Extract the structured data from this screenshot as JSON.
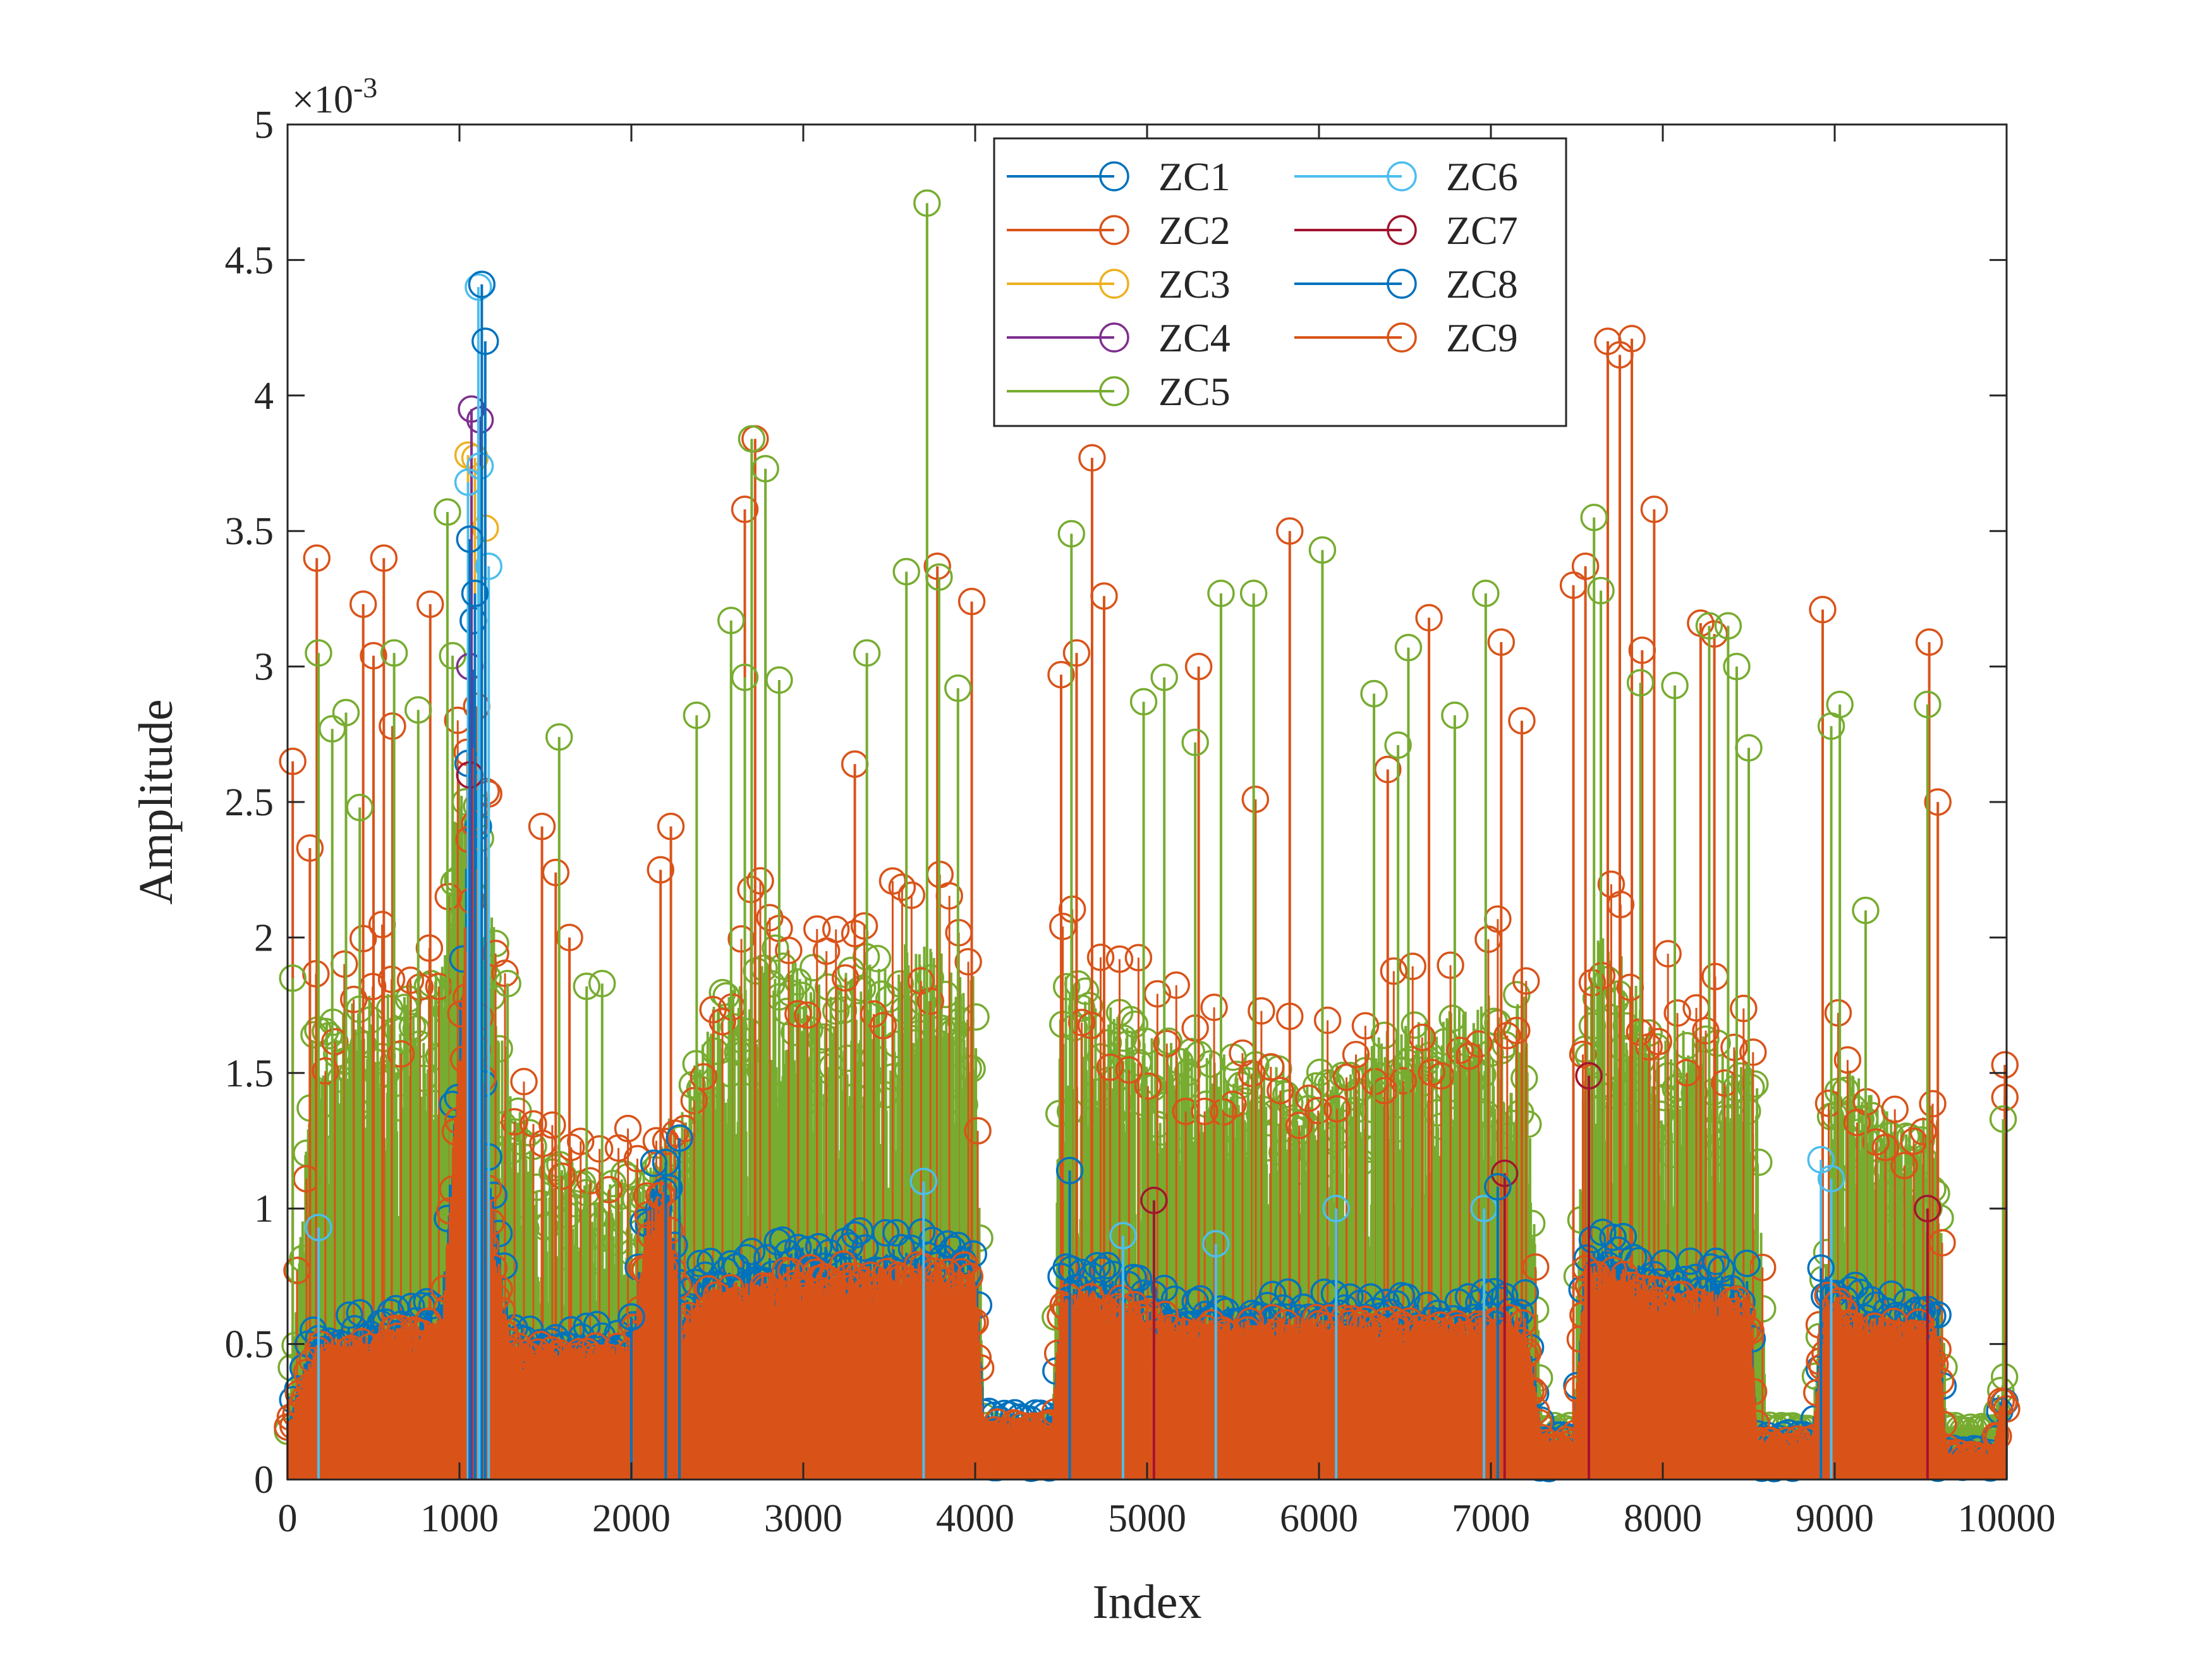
{
  "chart_data": {
    "type": "stem",
    "title": "",
    "xlabel": "Index",
    "ylabel": "Amplitude",
    "xlim": [
      0,
      10000
    ],
    "ylim": [
      0,
      0.005
    ],
    "y_scale_exponent": "×10-3",
    "y_exponent_base": "×10",
    "y_exponent_power": "-3",
    "x_ticks": [
      0,
      1000,
      2000,
      3000,
      4000,
      5000,
      6000,
      7000,
      8000,
      9000,
      10000
    ],
    "x_tick_labels": [
      "0",
      "1000",
      "2000",
      "3000",
      "4000",
      "5000",
      "6000",
      "7000",
      "8000",
      "9000",
      "10000"
    ],
    "y_ticks": [
      0,
      0.0005,
      0.001,
      0.0015,
      0.002,
      0.0025,
      0.003,
      0.0035,
      0.004,
      0.0045,
      0.005
    ],
    "y_tick_labels": [
      "0",
      "0.5",
      "1",
      "1.5",
      "2",
      "2.5",
      "3",
      "3.5",
      "4",
      "4.5",
      "5"
    ],
    "legend_position": "top-center",
    "series": [
      {
        "name": "ZC1",
        "color": "#0072BD"
      },
      {
        "name": "ZC2",
        "color": "#D95319"
      },
      {
        "name": "ZC3",
        "color": "#EDB120"
      },
      {
        "name": "ZC4",
        "color": "#7E2F8E"
      },
      {
        "name": "ZC5",
        "color": "#77AC30"
      },
      {
        "name": "ZC6",
        "color": "#4DBEEE"
      },
      {
        "name": "ZC7",
        "color": "#A2142F"
      },
      {
        "name": "ZC8",
        "color": "#0072BD"
      },
      {
        "name": "ZC9",
        "color": "#D95319"
      }
    ],
    "green_envelope": {
      "x": [
        0,
        150,
        900,
        1000,
        1150,
        1300,
        1700,
        2000,
        2300,
        2500,
        2800,
        3200,
        3700,
        4000,
        4050,
        4450,
        4500,
        4700,
        5200,
        6000,
        6500,
        7000,
        7200,
        7300,
        7350,
        7480,
        7550,
        7700,
        8000,
        8400,
        8550,
        8600,
        8800,
        8870,
        9000,
        9400,
        9600,
        9650,
        9920,
        9970,
        10000
      ],
      "y": [
        0.0002,
        0.0017,
        0.0019,
        0.0027,
        0.0024,
        0.0014,
        0.0011,
        0.00115,
        0.0014,
        0.0018,
        0.002,
        0.0019,
        0.002,
        0.0019,
        0.0002,
        0.0002,
        0.0019,
        0.0018,
        0.0016,
        0.0015,
        0.0017,
        0.0018,
        0.0018,
        0.0002,
        0.0002,
        0.0002,
        0.002,
        0.002,
        0.0017,
        0.0016,
        0.0015,
        0.0002,
        0.0002,
        0.0002,
        0.0016,
        0.0013,
        0.0014,
        0.0002,
        0.0002,
        0.0004,
        0.0004
      ],
      "ymin": [
        5e-05,
        0.0007,
        0.0007,
        0.0012,
        0.0008,
        0.0004,
        0.00035,
        0.00035,
        0.0005,
        0.0006,
        0.0007,
        0.0007,
        0.0007,
        0.0007,
        0.00015,
        0.00015,
        0.0007,
        0.0007,
        0.0006,
        0.0006,
        0.0006,
        0.0006,
        0.0006,
        0.00015,
        0.00015,
        0.00015,
        0.0007,
        0.0007,
        0.0006,
        0.0006,
        0.0006,
        0.00015,
        0.00015,
        0.00015,
        0.0005,
        0.0005,
        0.0005,
        0.00015,
        0.00015,
        0.0002,
        0.0002
      ]
    },
    "orange_envelope": {
      "x": [
        0,
        150,
        900,
        1000,
        1080,
        1150,
        1300,
        2000,
        2100,
        2200,
        2300,
        2400,
        3000,
        4000,
        4050,
        4450,
        4500,
        4700,
        5200,
        6000,
        7000,
        7200,
        7300,
        7480,
        7550,
        7700,
        8000,
        8500,
        8550,
        8600,
        8870,
        8950,
        9200,
        9600,
        9650,
        9920,
        9970,
        10000
      ],
      "y": [
        0.0002,
        0.0005,
        0.0006,
        0.0016,
        0.0028,
        0.0012,
        0.0005,
        0.0005,
        0.001,
        0.0011,
        0.0006,
        0.0007,
        0.0008,
        0.0008,
        0.00022,
        0.00022,
        0.0007,
        0.0007,
        0.0006,
        0.0006,
        0.0006,
        0.0006,
        0.00015,
        0.00015,
        0.0008,
        0.0008,
        0.0007,
        0.0007,
        0.00015,
        0.00015,
        0.00015,
        0.0007,
        0.0006,
        0.0006,
        0.0001,
        0.0001,
        0.0003,
        0.0003
      ]
    },
    "peaks_green": [
      [
        30,
        0.00185
      ],
      [
        180,
        0.00305
      ],
      [
        260,
        0.00277
      ],
      [
        340,
        0.00283
      ],
      [
        420,
        0.00248
      ],
      [
        620,
        0.00305
      ],
      [
        760,
        0.00284
      ],
      [
        930,
        0.00357
      ],
      [
        960,
        0.00304
      ],
      [
        1280,
        0.00183
      ],
      [
        1580,
        0.00274
      ],
      [
        1740,
        0.00182
      ],
      [
        1830,
        0.00183
      ],
      [
        2380,
        0.00282
      ],
      [
        2580,
        0.00317
      ],
      [
        2660,
        0.00296
      ],
      [
        2700,
        0.00384
      ],
      [
        2780,
        0.00373
      ],
      [
        2860,
        0.00295
      ],
      [
        3370,
        0.00305
      ],
      [
        3600,
        0.00335
      ],
      [
        3720,
        0.00471
      ],
      [
        3790,
        0.00333
      ],
      [
        3900,
        0.00292
      ],
      [
        4560,
        0.00349
      ],
      [
        4980,
        0.00287
      ],
      [
        5100,
        0.00296
      ],
      [
        5280,
        0.00272
      ],
      [
        5430,
        0.00327
      ],
      [
        5620,
        0.00327
      ],
      [
        6020,
        0.00343
      ],
      [
        6320,
        0.0029
      ],
      [
        6460,
        0.00271
      ],
      [
        6520,
        0.00307
      ],
      [
        6790,
        0.00282
      ],
      [
        6970,
        0.00327
      ],
      [
        7600,
        0.00355
      ],
      [
        7640,
        0.00328
      ],
      [
        7870,
        0.00294
      ],
      [
        8070,
        0.00293
      ],
      [
        8270,
        0.00315
      ],
      [
        8380,
        0.00315
      ],
      [
        8430,
        0.003
      ],
      [
        8500,
        0.0027
      ],
      [
        8980,
        0.00278
      ],
      [
        9030,
        0.00286
      ],
      [
        9180,
        0.0021
      ],
      [
        9540,
        0.00286
      ],
      [
        9980,
        0.00133
      ]
    ],
    "peaks_orange": [
      [
        30,
        0.00265
      ],
      [
        130,
        0.00233
      ],
      [
        170,
        0.0034
      ],
      [
        440,
        0.00323
      ],
      [
        500,
        0.00304
      ],
      [
        560,
        0.0034
      ],
      [
        610,
        0.00278
      ],
      [
        830,
        0.00323
      ],
      [
        1170,
        0.00253
      ],
      [
        1480,
        0.00241
      ],
      [
        1560,
        0.00224
      ],
      [
        1640,
        0.002
      ],
      [
        2170,
        0.00225
      ],
      [
        2230,
        0.00241
      ],
      [
        2660,
        0.00358
      ],
      [
        2720,
        0.00384
      ],
      [
        3300,
        0.00264
      ],
      [
        3780,
        0.00337
      ],
      [
        3980,
        0.00324
      ],
      [
        4500,
        0.00297
      ],
      [
        4590,
        0.00305
      ],
      [
        4680,
        0.00377
      ],
      [
        4750,
        0.00326
      ],
      [
        5300,
        0.003
      ],
      [
        5630,
        0.00251
      ],
      [
        5830,
        0.0035
      ],
      [
        6400,
        0.00262
      ],
      [
        6640,
        0.00318
      ],
      [
        7060,
        0.00309
      ],
      [
        7180,
        0.0028
      ],
      [
        7480,
        0.0033
      ],
      [
        7550,
        0.00337
      ],
      [
        7680,
        0.0042
      ],
      [
        7750,
        0.00415
      ],
      [
        7820,
        0.00421
      ],
      [
        7880,
        0.00306
      ],
      [
        7950,
        0.00358
      ],
      [
        8220,
        0.00316
      ],
      [
        8300,
        0.00312
      ],
      [
        8930,
        0.00321
      ],
      [
        9550,
        0.00309
      ],
      [
        9600,
        0.0025
      ],
      [
        9990,
        0.00153
      ],
      [
        9990,
        0.00141
      ]
    ],
    "peaks_blue": [
      [
        1060,
        0.00347
      ],
      [
        1090,
        0.00327
      ],
      [
        1130,
        0.00441
      ],
      [
        1150,
        0.0042
      ],
      [
        2000,
        0.0006
      ],
      [
        2200,
        0.00117
      ],
      [
        2280,
        0.00126
      ],
      [
        4550,
        0.00114
      ],
      [
        7040,
        0.00108
      ],
      [
        8920,
        0.00078
      ]
    ],
    "peaks_lightblue": [
      [
        1110,
        0.0044
      ],
      [
        1120,
        0.00374
      ],
      [
        1170,
        0.00337
      ],
      [
        1050,
        0.00368
      ],
      [
        180,
        0.00093
      ],
      [
        4860,
        0.0009
      ],
      [
        5400,
        0.00087
      ],
      [
        6100,
        0.001
      ],
      [
        6960,
        0.001
      ],
      [
        8920,
        0.00118
      ],
      [
        8980,
        0.00111
      ],
      [
        3700,
        0.0011
      ]
    ],
    "peaks_purple": [
      [
        1070,
        0.00395
      ],
      [
        1120,
        0.00391
      ],
      [
        1060,
        0.003
      ]
    ],
    "peaks_yellow": [
      [
        1050,
        0.00378
      ],
      [
        1090,
        0.00377
      ],
      [
        1150,
        0.00351
      ]
    ],
    "peaks_darkred": [
      [
        7570,
        0.00149
      ],
      [
        9540,
        0.001
      ],
      [
        5040,
        0.00103
      ],
      [
        7080,
        0.00113
      ],
      [
        1060,
        0.0026
      ]
    ],
    "floor_blue_segments": [
      [
        4000,
        4450
      ],
      [
        7230,
        7350
      ],
      [
        8540,
        8800
      ],
      [
        9600,
        9920
      ]
    ]
  }
}
